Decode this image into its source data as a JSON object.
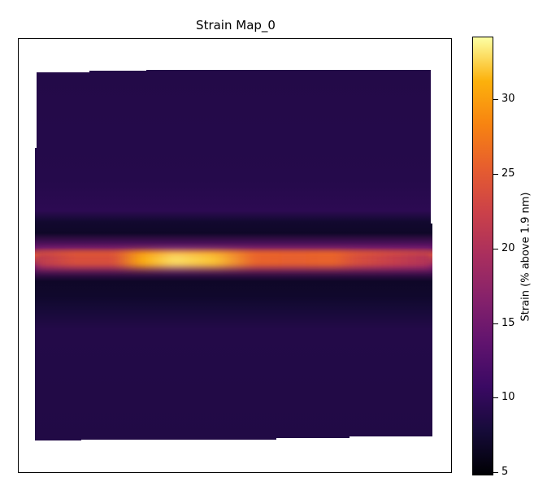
{
  "chart_data": {
    "type": "heatmap",
    "title": "Strain Map_0",
    "xlabel": "",
    "ylabel": "",
    "axes_ticks_visible": false,
    "colormap": "inferno",
    "colorbar": {
      "label": "Strain (% above 1.9 nm)",
      "range": [
        4.8,
        34.2
      ],
      "ticks": [
        5,
        10,
        15,
        20,
        25,
        30
      ]
    },
    "profile": {
      "description_rows": "strain vs. vertical position across the map (top to bottom, fraction of map height)",
      "y_fraction": [
        0.0,
        0.3,
        0.38,
        0.41,
        0.44,
        0.48,
        0.5,
        0.53,
        0.57,
        0.61,
        0.64,
        0.7,
        1.0
      ],
      "strain": [
        8.8,
        9.0,
        9.5,
        7.2,
        6.8,
        14.0,
        26.0,
        14.0,
        6.8,
        7.0,
        7.6,
        8.8,
        8.6
      ]
    },
    "band_peak_along_x": {
      "x_fraction": [
        0.0,
        0.1,
        0.2,
        0.27,
        0.35,
        0.45,
        0.55,
        0.65,
        0.75,
        0.8,
        0.9,
        1.0
      ],
      "strain": [
        21,
        24,
        24,
        31,
        33,
        32,
        26,
        25.5,
        26,
        24,
        22,
        20
      ]
    }
  }
}
